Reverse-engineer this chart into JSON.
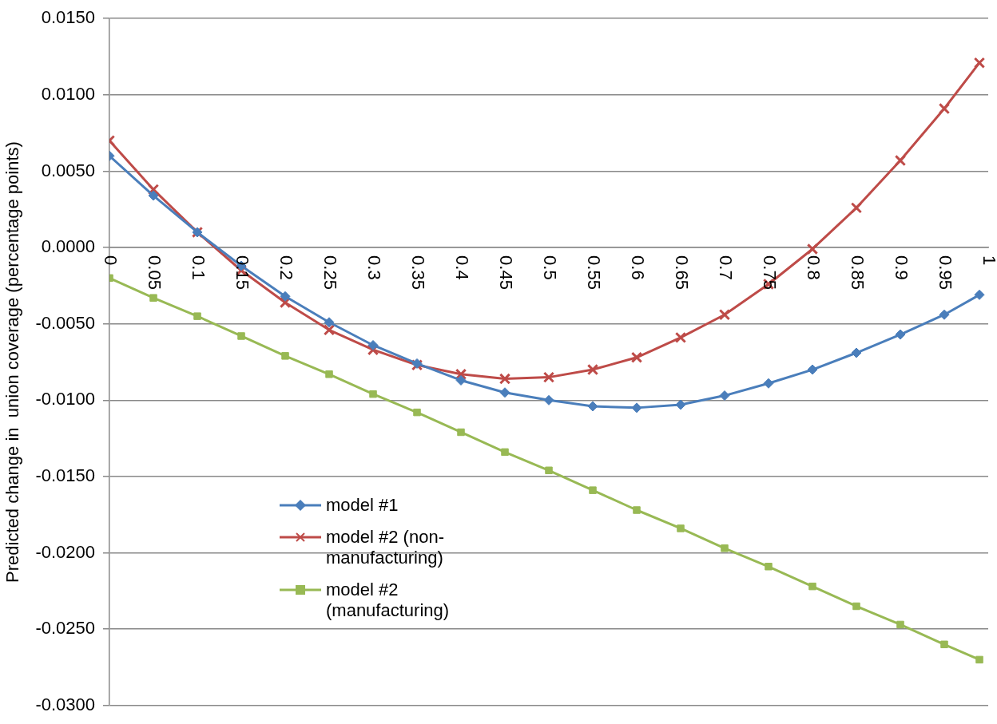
{
  "chart_data": {
    "type": "line",
    "ylabel": "Predicted change in  union coverage (percentage points)",
    "x": [
      0,
      0.05,
      0.1,
      0.15,
      0.2,
      0.25,
      0.3,
      0.35,
      0.4,
      0.45,
      0.5,
      0.55,
      0.6,
      0.65,
      0.7,
      0.75,
      0.8,
      0.85,
      0.9,
      0.95,
      0.99
    ],
    "xlim": [
      0,
      1
    ],
    "xticks": [
      0,
      0.05,
      0.1,
      0.15,
      0.2,
      0.25,
      0.3,
      0.35,
      0.4,
      0.45,
      0.5,
      0.55,
      0.6,
      0.65,
      0.7,
      0.75,
      0.8,
      0.85,
      0.9,
      0.95,
      1
    ],
    "ylim": [
      -0.03,
      0.015
    ],
    "yticks": [
      {
        "value": -0.03,
        "label": "-0.0300"
      },
      {
        "value": -0.025,
        "label": "-0.0250"
      },
      {
        "value": -0.02,
        "label": "-0.0200"
      },
      {
        "value": -0.015,
        "label": "-0.0150"
      },
      {
        "value": -0.01,
        "label": "-0.0100"
      },
      {
        "value": -0.005,
        "label": "-0.0050"
      },
      {
        "value": 0,
        "label": "0.0000"
      },
      {
        "value": 0.005,
        "label": "0.0050"
      },
      {
        "value": 0.01,
        "label": "0.0100"
      },
      {
        "value": 0.015,
        "label": "0.0150"
      }
    ],
    "grid": "y",
    "legend": "bottom left",
    "series": [
      {
        "name": "model #1",
        "color": "#4a7ebb",
        "marker": "diamond",
        "values": [
          0.006,
          0.0034,
          0.001,
          -0.0012,
          -0.0032,
          -0.0049,
          -0.0064,
          -0.0076,
          -0.0087,
          -0.0095,
          -0.01,
          -0.0104,
          -0.0105,
          -0.0103,
          -0.0097,
          -0.0089,
          -0.008,
          -0.0069,
          -0.0057,
          -0.0044,
          -0.0031
        ]
      },
      {
        "name": "model #2 (non-manufacturing)",
        "color": "#be4b48",
        "marker": "cross",
        "values": [
          0.007,
          0.0038,
          0.001,
          -0.0015,
          -0.0036,
          -0.0054,
          -0.0067,
          -0.0077,
          -0.0083,
          -0.0086,
          -0.0085,
          -0.008,
          -0.0072,
          -0.0059,
          -0.0044,
          -0.0024,
          -0.0001,
          0.0026,
          0.0057,
          0.0091,
          0.0121
        ]
      },
      {
        "name": "model #2 (manufacturing)",
        "color": "#98b954",
        "marker": "square",
        "values": [
          -0.002,
          -0.0033,
          -0.0045,
          -0.0058,
          -0.0071,
          -0.0083,
          -0.0096,
          -0.0108,
          -0.0121,
          -0.0134,
          -0.0146,
          -0.0159,
          -0.0172,
          -0.0184,
          -0.0197,
          -0.0209,
          -0.0222,
          -0.0235,
          -0.0247,
          -0.026,
          -0.027
        ]
      }
    ]
  }
}
